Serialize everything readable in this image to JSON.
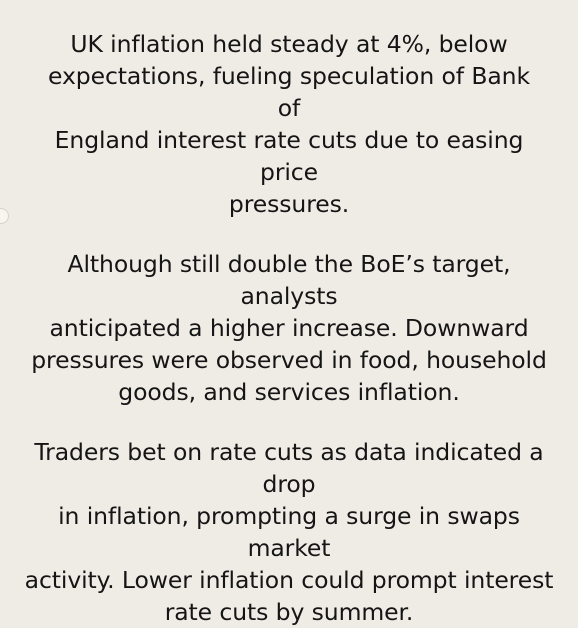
{
  "paragraphs": [
    {
      "lines": [
        "UK inflation held steady at 4%, below",
        "expectations, fueling speculation of Bank of",
        "England interest rate cuts due to easing price",
        "pressures."
      ]
    },
    {
      "lines": [
        "Although still double the BoE’s target, analysts",
        "anticipated a higher increase. Downward",
        "pressures were observed in food, household",
        "goods, and services inflation."
      ]
    },
    {
      "lines": [
        "Traders bet on rate cuts as data indicated a drop",
        "in inflation, prompting a surge in swaps market",
        "activity. Lower inflation could prompt interest",
        "rate cuts by summer."
      ]
    }
  ]
}
